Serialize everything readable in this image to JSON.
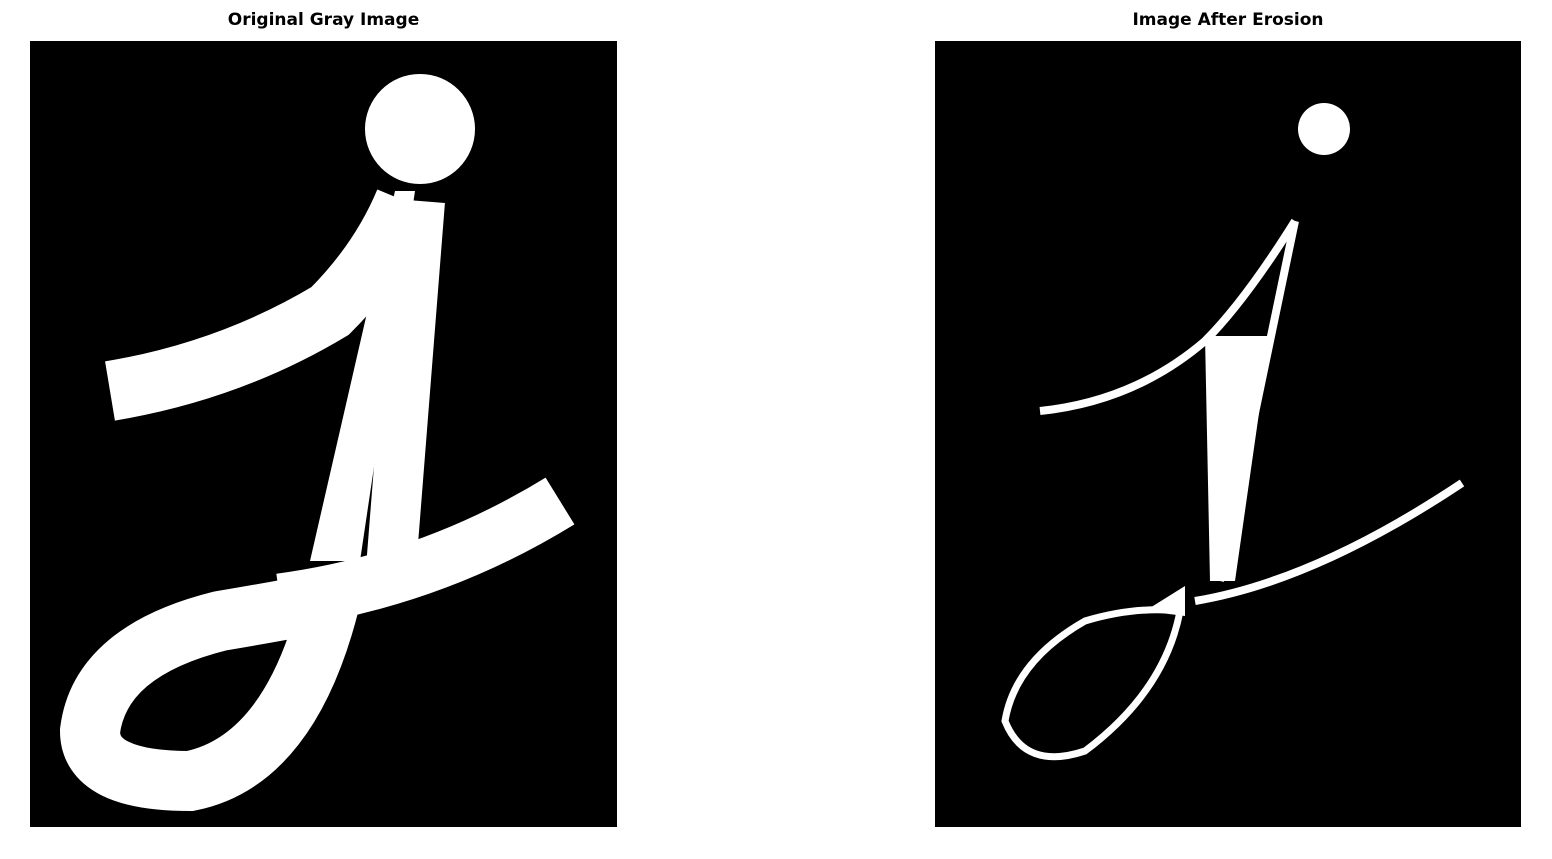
{
  "figure": {
    "panels": [
      {
        "id": "original",
        "title": "Original Gray Image",
        "image": "binary handwritten letter j, thick white stroke on black"
      },
      {
        "id": "eroded",
        "title": "Image After Erosion",
        "image": "same letter j after morphological erosion, thin white stroke on black"
      }
    ],
    "colors": {
      "background": "#000000",
      "foreground": "#ffffff"
    }
  }
}
